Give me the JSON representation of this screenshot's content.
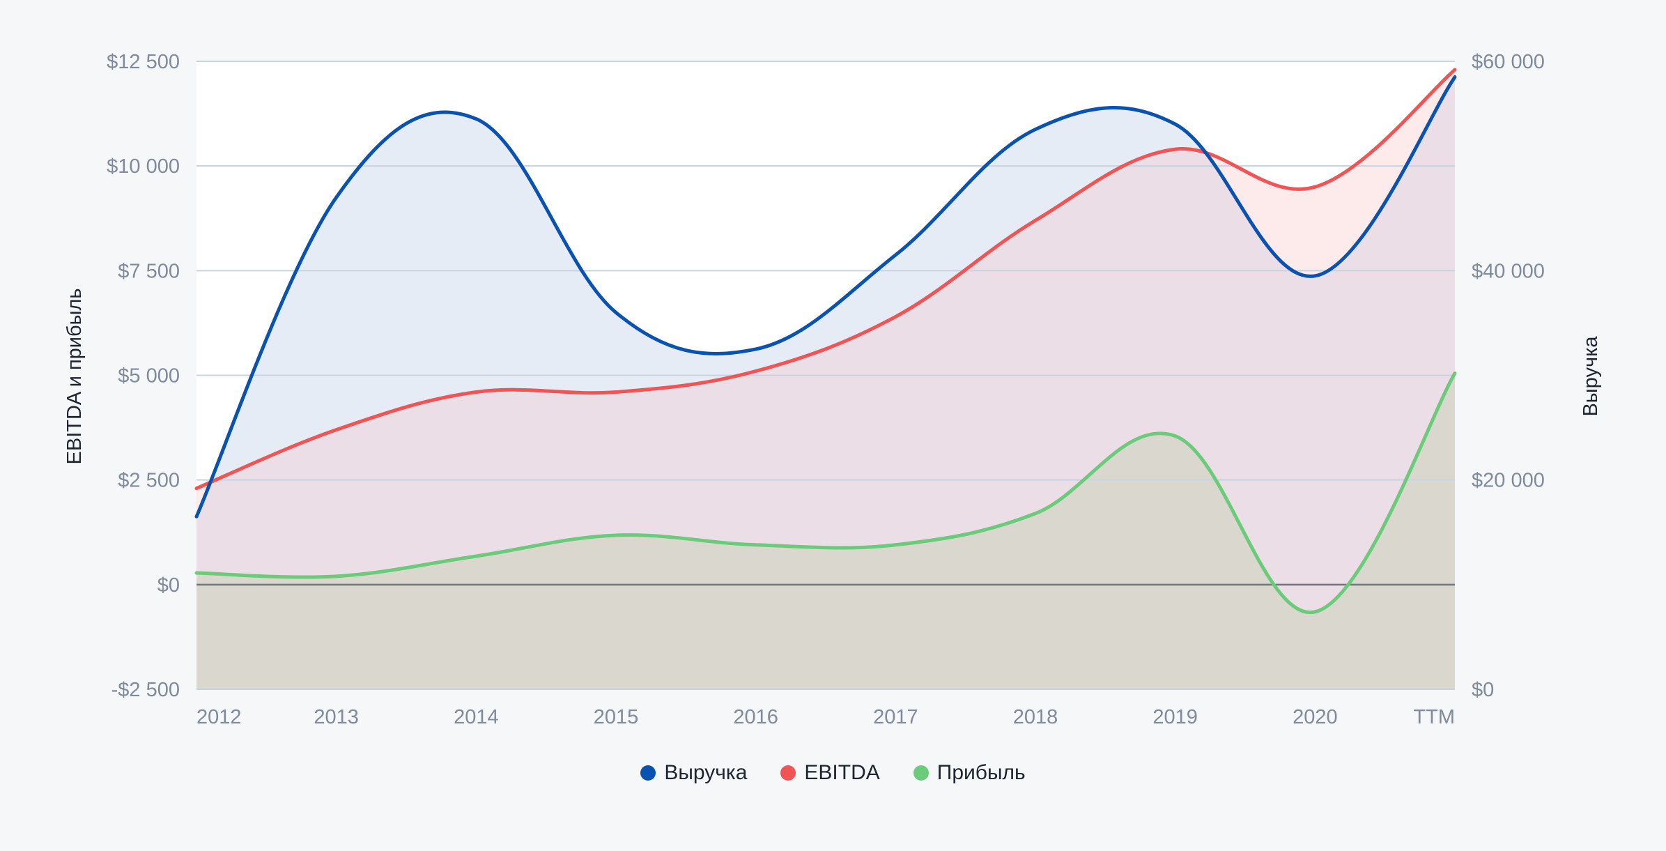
{
  "chart_data": {
    "type": "area",
    "categories": [
      "2012",
      "2013",
      "2014",
      "2015",
      "2016",
      "2017",
      "2018",
      "2019",
      "2020",
      "TTM"
    ],
    "left_axis": {
      "title": "EBITDA и прибыль",
      "ylim": [
        -2500,
        12500
      ],
      "ticks": [
        "-$2 500",
        "$0",
        "$2 500",
        "$5 000",
        "$7 500",
        "$10 000",
        "$12 500"
      ],
      "tick_values": [
        -2500,
        0,
        2500,
        5000,
        7500,
        10000,
        12500
      ]
    },
    "right_axis": {
      "title": "Выручка",
      "ylim": [
        0,
        60000
      ],
      "ticks": [
        "$0",
        "$20 000",
        "$40 000",
        "$60 000"
      ],
      "tick_values": [
        0,
        20000,
        40000,
        60000
      ]
    },
    "series": [
      {
        "name": "Выручка",
        "axis": "right",
        "color": "#0a52b0",
        "fill": "#e5ecf6",
        "values": [
          16500,
          47000,
          54500,
          36000,
          32500,
          41500,
          53500,
          54000,
          39500,
          58500
        ]
      },
      {
        "name": "EBITDA",
        "axis": "left",
        "color": "#f05454",
        "fill": "rgba(250,190,192,0.30)",
        "values": [
          2300,
          3700,
          4600,
          4600,
          5100,
          6400,
          8700,
          10400,
          9500,
          12300
        ]
      },
      {
        "name": "Прибыль",
        "axis": "left",
        "color": "#6ccb7b",
        "fill": "rgba(185,205,160,0.35)",
        "values": [
          280,
          200,
          680,
          1180,
          950,
          950,
          1700,
          3550,
          -650,
          5050
        ]
      }
    ],
    "grid": true,
    "legend_position": "bottom-center"
  }
}
